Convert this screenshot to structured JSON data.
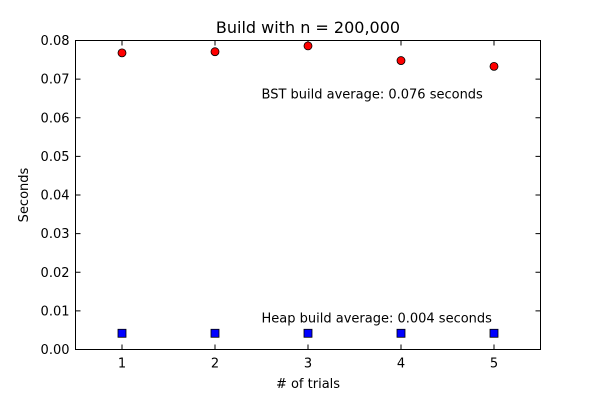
{
  "chart_data": {
    "type": "scatter",
    "title": "Build with n = 200,000",
    "xlabel": "# of trials",
    "ylabel": "Seconds",
    "xlim": [
      0.5,
      5.5
    ],
    "ylim": [
      0,
      0.08
    ],
    "xticks": [
      1,
      2,
      3,
      4,
      5
    ],
    "xtick_labels": [
      "1",
      "2",
      "3",
      "4",
      "5"
    ],
    "yticks": [
      0,
      0.01,
      0.02,
      0.03,
      0.04,
      0.05,
      0.06,
      0.07,
      0.08
    ],
    "ytick_labels": [
      "0.00",
      "0.01",
      "0.02",
      "0.03",
      "0.04",
      "0.05",
      "0.06",
      "0.07",
      "0.08"
    ],
    "grid": false,
    "series": [
      {
        "marker": "circle",
        "color": "#ff0000",
        "x": [
          1,
          2,
          3,
          4,
          5
        ],
        "y": [
          0.0768,
          0.0771,
          0.0786,
          0.0748,
          0.0733
        ]
      },
      {
        "marker": "square",
        "color": "#0000ff",
        "x": [
          1,
          2,
          3,
          4,
          5
        ],
        "y": [
          0.0042,
          0.0042,
          0.0042,
          0.0042,
          0.0042
        ]
      }
    ],
    "annotations": [
      {
        "text": "BST build average: 0.076 seconds",
        "x": 2.5,
        "y": 0.065
      },
      {
        "text": "Heap build average: 0.004 seconds",
        "x": 2.5,
        "y": 0.007
      }
    ]
  }
}
